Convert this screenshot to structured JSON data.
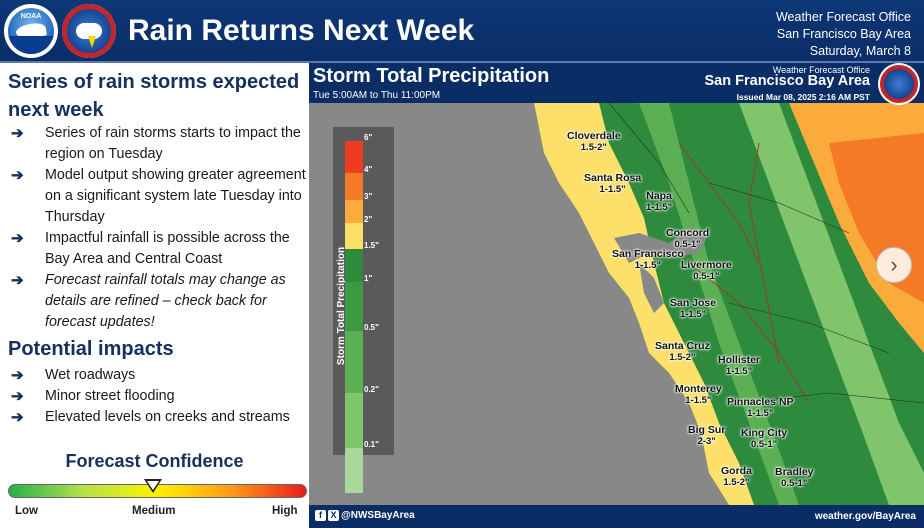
{
  "header": {
    "title": "Rain Returns Next Week",
    "office_lines": [
      "Weather Forecast Office",
      "San Francisco Bay Area",
      "Saturday, March 8"
    ],
    "noaa_logo_text": "NOAA"
  },
  "left": {
    "heading": "Series of rain storms expected next week",
    "bullets": [
      {
        "text": "Series of rain storms starts to impact the region on Tuesday",
        "italic": false
      },
      {
        "text": "Model output showing greater agreement on a significant system late Tuesday into Thursday",
        "italic": false
      },
      {
        "text": "Impactful rainfall is possible across the Bay Area and Central Coast",
        "italic": false
      },
      {
        "text": "Forecast rainfall totals may change as details are refined – check back for forecast updates!",
        "italic": true
      }
    ],
    "impacts_heading": "Potential impacts",
    "impacts": [
      "Wet roadways",
      "Minor street flooding",
      "Elevated levels on creeks and streams"
    ],
    "confidence": {
      "title": "Forecast Confidence",
      "low": "Low",
      "medium": "Medium",
      "high": "High",
      "level": "Medium"
    },
    "arrow_icon": "arrow-right-icon"
  },
  "map": {
    "title": "Storm Total Precipitation",
    "period": "Tue 5:00AM to Thu 11:00PM",
    "wfo": "Weather Forecast Office",
    "area": "San Francisco Bay Area",
    "issued": "Issued Mar 08, 2025 2:16 AM PST",
    "legend": {
      "axis_label": "Storm Total Precipitation (in)",
      "ticks": [
        "6\"",
        "4\"",
        "3\"",
        "2\"",
        "1.5\"",
        "1\"",
        "0.5\"",
        "0.2\"",
        "0.1\""
      ],
      "colors": [
        "#ee3b22",
        "#f57a26",
        "#fbab3b",
        "#fde06a",
        "#2e8b3e",
        "#3c9a45",
        "#5cb053",
        "#80c46b",
        "#a8d89a"
      ]
    },
    "cities": [
      {
        "name": "Cloverdale",
        "value": "1.5-2\""
      },
      {
        "name": "Santa Rosa",
        "value": "1-1.5\""
      },
      {
        "name": "Napa",
        "value": "1-1.5\""
      },
      {
        "name": "Concord",
        "value": "0.5-1\""
      },
      {
        "name": "San Francisco",
        "value": "1-1.5\""
      },
      {
        "name": "Livermore",
        "value": "0.5-1\""
      },
      {
        "name": "San Jose",
        "value": "1-1.5\""
      },
      {
        "name": "Santa Cruz",
        "value": "1.5-2\""
      },
      {
        "name": "Hollister",
        "value": "1-1.5\""
      },
      {
        "name": "Monterey",
        "value": "1-1.5\""
      },
      {
        "name": "Pinnacles NP",
        "value": "1-1.5\""
      },
      {
        "name": "Big Sur",
        "value": "2-3\""
      },
      {
        "name": "King City",
        "value": "0.5-1\""
      },
      {
        "name": "Gorda",
        "value": "1.5-2\""
      },
      {
        "name": "Bradley",
        "value": "0.5-1\""
      }
    ],
    "next_icon": "chevron-right-icon"
  },
  "footer": {
    "social": "@NWSBayArea",
    "website": "weather.gov/BayArea"
  }
}
